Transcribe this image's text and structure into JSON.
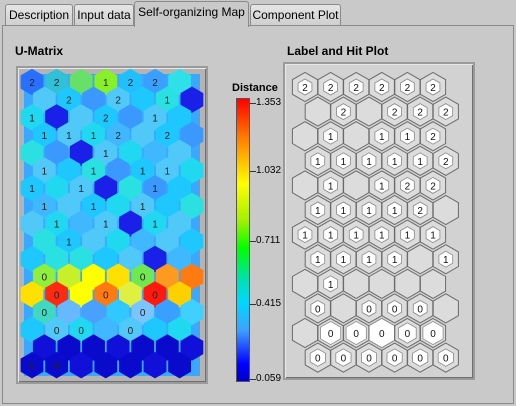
{
  "tabs": [
    {
      "label": "Description",
      "active": false
    },
    {
      "label": "Input data",
      "active": false
    },
    {
      "label": "Self-organizing Map",
      "active": true
    },
    {
      "label": "Component Plot",
      "active": false
    }
  ],
  "umatrix": {
    "title": "U-Matrix",
    "legend": {
      "title": "Distance",
      "ticks": [
        "1.353",
        "1.032",
        "0.711",
        "0.415",
        "0.059"
      ]
    },
    "cell_labels": [
      [
        "2",
        "2",
        "",
        "1",
        "2",
        "2",
        ""
      ],
      [
        "",
        "2",
        "",
        "2",
        "",
        "1",
        ""
      ],
      [
        "1",
        "",
        "",
        "2",
        "",
        "1",
        ""
      ],
      [
        "1",
        "1",
        "1",
        "2",
        "",
        "2",
        ""
      ],
      [
        "",
        "",
        "",
        "1",
        "",
        "",
        ""
      ],
      [
        "1",
        "",
        "1",
        "",
        "1",
        "1",
        ""
      ],
      [
        "1",
        "",
        "1",
        "",
        "",
        "1",
        ""
      ],
      [
        "1",
        "",
        "1",
        "",
        "1",
        "",
        ""
      ],
      [
        "",
        "1",
        "",
        "1",
        "",
        "1",
        ""
      ],
      [
        "",
        "1",
        "",
        "",
        "",
        "",
        ""
      ],
      [
        "",
        "",
        "",
        "",
        "",
        "",
        ""
      ],
      [
        "0",
        "",
        "",
        "",
        "0",
        "",
        ""
      ],
      [
        "",
        "0",
        "",
        "0",
        "",
        "0",
        ""
      ],
      [
        "0",
        "",
        "",
        "",
        "0",
        "",
        ""
      ],
      [
        "",
        "0",
        "0",
        "",
        "0",
        "",
        ""
      ],
      [
        "",
        "",
        "",
        "",
        "",
        "",
        ""
      ],
      [
        "0",
        "0",
        "",
        "",
        "",
        "",
        ""
      ]
    ]
  },
  "hitplot": {
    "title": "Label and Hit Plot",
    "cells": [
      [
        "2",
        "2",
        "2",
        "2",
        "2",
        "2"
      ],
      [
        "",
        "2",
        "",
        "2",
        "2",
        "2"
      ],
      [
        "",
        "1",
        "",
        "1",
        "1",
        "2"
      ],
      [
        "1",
        "1",
        "1",
        "1",
        "1",
        "2"
      ],
      [
        "",
        "1",
        "",
        "1",
        "2",
        "2"
      ],
      [
        "1",
        "1",
        "1",
        "1",
        "2",
        ""
      ],
      [
        "1",
        "1",
        "1",
        "1",
        "1",
        "1"
      ],
      [
        "1",
        "1",
        "1",
        "1",
        "",
        "1"
      ],
      [
        "",
        "1",
        "",
        "",
        "",
        ""
      ],
      [
        "0",
        "",
        "0",
        "0",
        "0",
        ""
      ],
      [
        "",
        "0",
        "0",
        "0",
        "0",
        "0"
      ],
      [
        "0",
        "0",
        "0",
        "0",
        "0",
        "0"
      ]
    ],
    "hits": [
      [
        0.55,
        0.55,
        0.55,
        0.55,
        0.55,
        0.55
      ],
      [
        0,
        0.55,
        0,
        0.55,
        0.55,
        0.55
      ],
      [
        0,
        0.55,
        0,
        0.55,
        0.55,
        0.55
      ],
      [
        0.55,
        0.55,
        0.55,
        0.55,
        0.55,
        0.55
      ],
      [
        0,
        0.55,
        0,
        0.55,
        0.55,
        0.55
      ],
      [
        0.55,
        0.55,
        0.55,
        0.55,
        0.55,
        0
      ],
      [
        0.55,
        0.55,
        0.55,
        0.55,
        0.55,
        0.55
      ],
      [
        0.55,
        0.55,
        0.55,
        0.55,
        0,
        0.55
      ],
      [
        0,
        0.55,
        0,
        0,
        0,
        0
      ],
      [
        0.55,
        0,
        0.55,
        0.55,
        0.55,
        0
      ],
      [
        0,
        0.8,
        0.8,
        1.0,
        0.7,
        0.8
      ],
      [
        0.6,
        0.6,
        0.6,
        0.6,
        0.6,
        0.6
      ]
    ]
  },
  "colors": {
    "panel": "#c9c9c9",
    "hex_outline": "#6a6a6a",
    "hit_fill": "#ffffff",
    "empty_fill": "#dcdcdc"
  }
}
